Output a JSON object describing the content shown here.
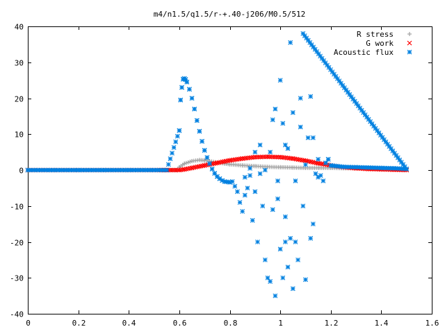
{
  "chart_data": {
    "type": "scatter",
    "title": "m4/n1.5/q1.5/r-+.40-j206/M0.5/512",
    "xlabel": "",
    "ylabel": "",
    "xlim": [
      0,
      1.6
    ],
    "ylim": [
      -40,
      40
    ],
    "xticks": [
      0,
      0.2,
      0.4,
      0.6,
      0.8,
      1,
      1.2,
      1.4,
      1.6
    ],
    "xtick_labels": [
      "0",
      "0.2",
      "0.4",
      "0.6",
      "0.8",
      "1",
      "1.2",
      "1.4",
      "1.6"
    ],
    "yticks": [
      -40,
      -30,
      -20,
      -10,
      0,
      10,
      20,
      30,
      40
    ],
    "ytick_labels": [
      "-40",
      "-30",
      "-20",
      "-10",
      "0",
      "10",
      "20",
      "30",
      "40"
    ],
    "grid": false,
    "legend_position": "top-right",
    "series": [
      {
        "name": "R stress",
        "marker": "plus",
        "color": "#a0a0a0",
        "points": [
          [
            0.0,
            0
          ],
          [
            0.1,
            0
          ],
          [
            0.2,
            0
          ],
          [
            0.3,
            0
          ],
          [
            0.4,
            0
          ],
          [
            0.5,
            0
          ],
          [
            0.59,
            0
          ],
          [
            0.6,
            0.8
          ],
          [
            0.62,
            1.8
          ],
          [
            0.65,
            2.5
          ],
          [
            0.68,
            2.8
          ],
          [
            0.7,
            2.7
          ],
          [
            0.72,
            2.5
          ],
          [
            0.75,
            2.1
          ],
          [
            0.78,
            1.8
          ],
          [
            0.8,
            1.6
          ],
          [
            0.85,
            1.3
          ],
          [
            0.9,
            1.1
          ],
          [
            0.95,
            0.9
          ],
          [
            1.0,
            0.8
          ],
          [
            1.05,
            0.7
          ],
          [
            1.1,
            0.6
          ],
          [
            1.15,
            0.6
          ],
          [
            1.2,
            0.6
          ],
          [
            1.25,
            0.5
          ],
          [
            1.3,
            0.5
          ],
          [
            1.35,
            0.5
          ],
          [
            1.4,
            0.4
          ],
          [
            1.45,
            0.3
          ],
          [
            1.5,
            0.2
          ]
        ]
      },
      {
        "name": "G work",
        "marker": "cross",
        "color": "#ff0000",
        "points": [
          [
            0.0,
            0
          ],
          [
            0.1,
            0
          ],
          [
            0.2,
            0
          ],
          [
            0.3,
            0
          ],
          [
            0.4,
            0
          ],
          [
            0.5,
            0
          ],
          [
            0.6,
            0
          ],
          [
            0.62,
            0.2
          ],
          [
            0.65,
            0.6
          ],
          [
            0.7,
            1.3
          ],
          [
            0.75,
            2.0
          ],
          [
            0.8,
            2.7
          ],
          [
            0.85,
            3.2
          ],
          [
            0.9,
            3.6
          ],
          [
            0.95,
            3.7
          ],
          [
            1.0,
            3.6
          ],
          [
            1.05,
            3.2
          ],
          [
            1.1,
            2.6
          ],
          [
            1.15,
            1.9
          ],
          [
            1.2,
            1.3
          ],
          [
            1.25,
            0.8
          ],
          [
            1.3,
            0.5
          ],
          [
            1.35,
            0.3
          ],
          [
            1.4,
            0.2
          ],
          [
            1.45,
            0.1
          ],
          [
            1.5,
            0
          ]
        ]
      },
      {
        "name": "Acoustic flux",
        "marker": "star",
        "color": "#0080e0",
        "points": [
          [
            0.0,
            0
          ],
          [
            0.1,
            0
          ],
          [
            0.2,
            0
          ],
          [
            0.3,
            0
          ],
          [
            0.4,
            0
          ],
          [
            0.5,
            0
          ],
          [
            0.55,
            0
          ],
          [
            0.6,
            11
          ],
          [
            0.605,
            19.5
          ],
          [
            0.61,
            23
          ],
          [
            0.615,
            25.3
          ],
          [
            0.62,
            25.5
          ],
          [
            0.625,
            25.2
          ],
          [
            0.63,
            24.5
          ],
          [
            0.64,
            22.5
          ],
          [
            0.65,
            20
          ],
          [
            0.66,
            17
          ],
          [
            0.67,
            13.8
          ],
          [
            0.68,
            10.8
          ],
          [
            0.69,
            8
          ],
          [
            0.7,
            5.5
          ],
          [
            0.71,
            3.5
          ],
          [
            0.72,
            1.8
          ],
          [
            0.73,
            0.3
          ],
          [
            0.74,
            -0.9
          ],
          [
            0.75,
            -1.8
          ],
          [
            0.76,
            -2.4
          ],
          [
            0.77,
            -2.9
          ],
          [
            0.78,
            -3.2
          ],
          [
            0.8,
            -3.4
          ],
          [
            0.81,
            -3.2
          ],
          [
            0.82,
            -4.5
          ],
          [
            0.83,
            -6
          ],
          [
            0.84,
            -9
          ],
          [
            0.85,
            -11.5
          ],
          [
            0.86,
            -7
          ],
          [
            0.87,
            -5
          ],
          [
            0.88,
            -1.5
          ],
          [
            0.89,
            -14
          ],
          [
            0.9,
            5
          ],
          [
            0.91,
            -20
          ],
          [
            0.92,
            7
          ],
          [
            0.93,
            -10
          ],
          [
            0.94,
            -25
          ],
          [
            0.95,
            -30
          ],
          [
            0.96,
            -31
          ],
          [
            0.97,
            -11
          ],
          [
            0.97,
            14
          ],
          [
            0.98,
            17
          ],
          [
            0.99,
            -8
          ],
          [
            1.0,
            -22
          ],
          [
            1.01,
            13
          ],
          [
            1.01,
            -30
          ],
          [
            1.02,
            7
          ],
          [
            1.03,
            -27
          ],
          [
            1.04,
            35.5
          ],
          [
            1.05,
            -33
          ],
          [
            1.06,
            -3
          ],
          [
            1.07,
            -25
          ],
          [
            1.08,
            20
          ],
          [
            1.09,
            -10
          ],
          [
            1.1,
            -30.5
          ],
          [
            1.11,
            9
          ],
          [
            1.12,
            -19
          ],
          [
            1.12,
            20.5
          ],
          [
            1.13,
            -15
          ],
          [
            1.13,
            9
          ],
          [
            1.14,
            -1
          ],
          [
            1.15,
            3
          ],
          [
            1.16,
            -1.5
          ],
          [
            1.17,
            -3
          ],
          [
            1.18,
            2
          ],
          [
            1.19,
            3
          ],
          [
            1.2,
            1.3
          ],
          [
            1.25,
            0.9
          ],
          [
            1.3,
            0.8
          ],
          [
            1.35,
            0.7
          ],
          [
            1.4,
            0.6
          ],
          [
            1.45,
            0.5
          ],
          [
            1.5,
            0.3
          ],
          [
            1.09,
            38
          ],
          [
            1.06,
            -20
          ],
          [
            1.04,
            -19
          ],
          [
            1.02,
            -13
          ],
          [
            1.0,
            25
          ],
          [
            0.99,
            -3
          ],
          [
            0.98,
            -35
          ],
          [
            0.96,
            5
          ],
          [
            0.94,
            0
          ],
          [
            0.92,
            -1
          ],
          [
            0.9,
            -6
          ],
          [
            0.88,
            0.5
          ],
          [
            0.86,
            -2
          ],
          [
            1.15,
            -2
          ],
          [
            1.1,
            1.5
          ],
          [
            1.08,
            12
          ],
          [
            1.05,
            16
          ],
          [
            1.03,
            6
          ],
          [
            1.02,
            -20
          ]
        ]
      }
    ]
  }
}
